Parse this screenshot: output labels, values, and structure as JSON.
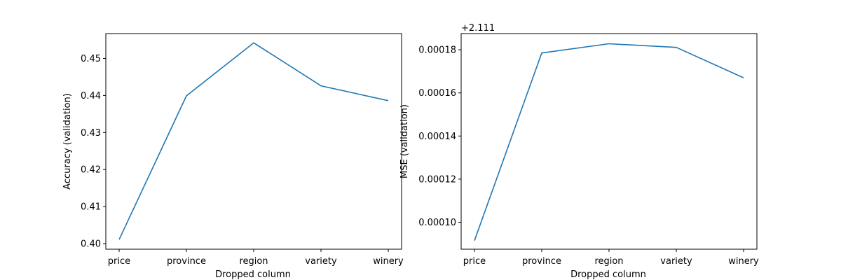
{
  "chart_data": [
    {
      "type": "line",
      "title": "",
      "xlabel": "Dropped column",
      "ylabel": "Accuracy (validation)",
      "categories": [
        "price",
        "province",
        "region",
        "variety",
        "winery"
      ],
      "values": [
        0.4011,
        0.4399,
        0.4542,
        0.4426,
        0.4386
      ],
      "ylim": [
        0.3985,
        0.4567
      ],
      "yticks": [
        0.4,
        0.41,
        0.42,
        0.43,
        0.44,
        0.45
      ],
      "ytick_labels": [
        "0.40",
        "0.41",
        "0.42",
        "0.43",
        "0.44",
        "0.45"
      ],
      "offset_text": "",
      "color": "#1f77b4",
      "grid": false,
      "legend": "none"
    },
    {
      "type": "line",
      "title": "",
      "xlabel": "Dropped column",
      "ylabel": "MSE (validation)",
      "categories": [
        "price",
        "province",
        "region",
        "variety",
        "winery"
      ],
      "values": [
        9.15e-05,
        0.0001785,
        0.0001828,
        0.0001811,
        0.000167
      ],
      "ylim": [
        8.75e-05,
        0.0001875
      ],
      "yticks": [
        0.0001,
        0.00012,
        0.00014,
        0.00016,
        0.00018
      ],
      "ytick_labels": [
        "0.00010",
        "0.00012",
        "0.00014",
        "0.00016",
        "0.00018"
      ],
      "offset_text": "+2.111",
      "color": "#1f77b4",
      "grid": false,
      "legend": "none"
    }
  ]
}
